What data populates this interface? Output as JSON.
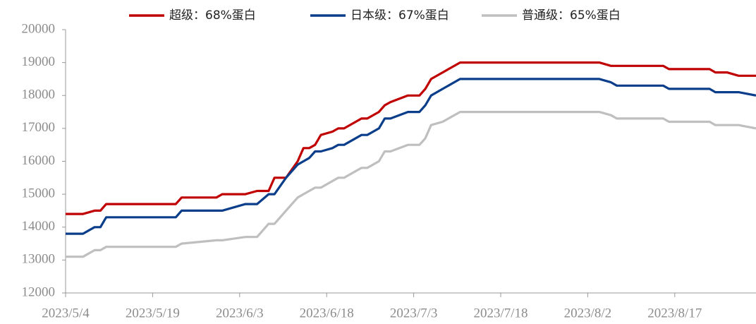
{
  "chart_data": {
    "type": "line",
    "x": [
      "2023/5/4",
      "2023/5/7",
      "2023/5/9",
      "2023/5/10",
      "2023/5/11",
      "2023/5/12",
      "2023/5/23",
      "2023/5/24",
      "2023/5/30",
      "2023/5/31",
      "2023/6/4",
      "2023/6/6",
      "2023/6/8",
      "2023/6/9",
      "2023/6/11",
      "2023/6/13",
      "2023/6/14",
      "2023/6/15",
      "2023/6/16",
      "2023/6/17",
      "2023/6/19",
      "2023/6/20",
      "2023/6/21",
      "2023/6/24",
      "2023/6/25",
      "2023/6/27",
      "2023/6/28",
      "2023/6/29",
      "2023/7/2",
      "2023/7/4",
      "2023/7/5",
      "2023/7/6",
      "2023/7/8",
      "2023/7/11",
      "2023/8/4",
      "2023/8/6",
      "2023/8/7",
      "2023/8/15",
      "2023/8/16",
      "2023/8/23",
      "2023/8/24",
      "2023/8/26",
      "2023/8/28",
      "2023/8/31"
    ],
    "series": [
      {
        "name": "超级：68%蛋白",
        "color": "#c00000",
        "values": [
          14400,
          14400,
          14500,
          14500,
          14700,
          14700,
          14700,
          14900,
          14900,
          15000,
          15000,
          15100,
          15100,
          15500,
          15500,
          16000,
          16400,
          16400,
          16500,
          16800,
          16900,
          17000,
          17000,
          17300,
          17300,
          17500,
          17700,
          17800,
          18000,
          18000,
          18200,
          18500,
          18700,
          19000,
          19000,
          18900,
          18900,
          18900,
          18800,
          18800,
          18700,
          18700,
          18600,
          18600
        ]
      },
      {
        "name": "日本级：67%蛋白",
        "color": "#0a3d8a",
        "values": [
          13800,
          13800,
          14000,
          14000,
          14300,
          14300,
          14300,
          14500,
          14500,
          14500,
          14700,
          14700,
          15000,
          15000,
          15500,
          15900,
          16000,
          16100,
          16300,
          16300,
          16400,
          16500,
          16500,
          16800,
          16800,
          17000,
          17300,
          17300,
          17500,
          17500,
          17700,
          18000,
          18200,
          18500,
          18500,
          18400,
          18300,
          18300,
          18200,
          18200,
          18100,
          18100,
          18100,
          18000
        ]
      },
      {
        "name": "普通级：65%蛋白",
        "color": "#bfbfbf",
        "values": [
          13100,
          13100,
          13300,
          13300,
          13400,
          13400,
          13400,
          13500,
          13600,
          13600,
          13700,
          13700,
          14100,
          14100,
          14500,
          14900,
          15000,
          15100,
          15200,
          15200,
          15400,
          15500,
          15500,
          15800,
          15800,
          16000,
          16300,
          16300,
          16500,
          16500,
          16700,
          17100,
          17200,
          17500,
          17500,
          17400,
          17300,
          17300,
          17200,
          17200,
          17100,
          17100,
          17100,
          17000
        ]
      }
    ],
    "xlim": [
      "2023/5/4",
      "2023/8/31"
    ],
    "xticks": [
      "2023/5/4",
      "2023/5/19",
      "2023/6/3",
      "2023/6/18",
      "2023/7/3",
      "2023/7/18",
      "2023/8/2",
      "2023/8/17"
    ],
    "ylim": [
      12000,
      20000
    ],
    "yticks": [
      12000,
      13000,
      14000,
      15000,
      16000,
      17000,
      18000,
      19000,
      20000
    ],
    "legend": "top"
  }
}
